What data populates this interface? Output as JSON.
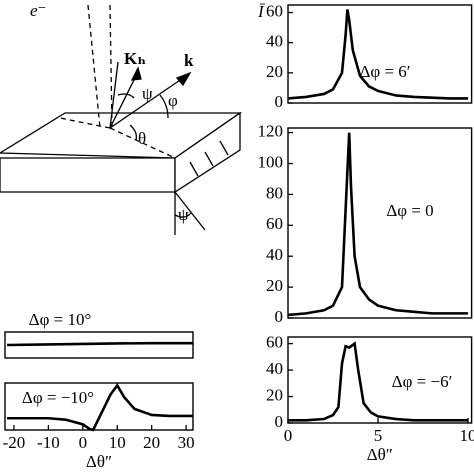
{
  "diagram": {
    "labels": [
      "e⁻",
      "Kₕ",
      "k",
      "ψ",
      "φ",
      "θ",
      "ψ"
    ]
  },
  "chart_data": [
    {
      "type": "line",
      "annotation": "Δφ = 6′",
      "ylabel": "Ī",
      "color": "#000000",
      "x": [
        0,
        1,
        2,
        2.5,
        3,
        3.2,
        3.3,
        3.4,
        3.6,
        4,
        4.5,
        5,
        6,
        7,
        8,
        9,
        10
      ],
      "values": [
        3,
        4,
        6,
        9,
        20,
        45,
        62,
        55,
        35,
        18,
        11,
        8,
        5,
        4,
        3.5,
        3,
        3
      ],
      "xlim": [
        0,
        10.2
      ],
      "ylim": [
        0,
        65
      ],
      "yticks": [
        0,
        20,
        40,
        60
      ]
    },
    {
      "type": "line",
      "annotation": "Δφ = 0",
      "color": "#000000",
      "x": [
        0,
        1,
        2,
        2.5,
        3,
        3.2,
        3.4,
        3.5,
        3.7,
        4,
        4.5,
        5,
        6,
        7,
        8,
        9,
        10
      ],
      "values": [
        2,
        3,
        5,
        8,
        20,
        70,
        120,
        85,
        40,
        20,
        12,
        8,
        5,
        4,
        3,
        3,
        3
      ],
      "xlim": [
        0,
        10.2
      ],
      "ylim": [
        0,
        123
      ],
      "yticks": [
        0,
        20,
        40,
        60,
        80,
        100,
        120
      ]
    },
    {
      "type": "line",
      "annotation": "Δφ = −6′",
      "xlabel": "Δθ″",
      "color": "#000000",
      "x": [
        0,
        1,
        2,
        2.5,
        2.8,
        3,
        3.2,
        3.4,
        3.6,
        3.7,
        3.9,
        4.2,
        4.6,
        5,
        6,
        7,
        8,
        10
      ],
      "values": [
        2,
        2,
        3,
        6,
        12,
        45,
        58,
        57,
        59,
        60,
        40,
        15,
        8,
        5,
        3,
        2,
        2,
        2
      ],
      "xlim": [
        0,
        10.2
      ],
      "ylim": [
        0,
        65
      ],
      "yticks": [
        0,
        20,
        40,
        60
      ],
      "xticks": [
        0,
        5,
        10
      ]
    },
    {
      "type": "line",
      "annotation": "Δφ = 10°",
      "color": "#000000",
      "x": [
        -22,
        -10,
        0,
        10,
        20,
        32
      ],
      "values": [
        0.5,
        0.52,
        0.54,
        0.56,
        0.57,
        0.57
      ],
      "xlim": [
        -22.6,
        32
      ],
      "ylim": [
        0,
        1
      ]
    },
    {
      "type": "line",
      "annotation": "Δφ = −10°",
      "xlabel": "Δθ″",
      "color": "#000000",
      "x": [
        -22,
        -15,
        -10,
        -5,
        0,
        2,
        3,
        5,
        8,
        10,
        12,
        15,
        20,
        25,
        32
      ],
      "values": [
        0.25,
        0.25,
        0.25,
        0.22,
        0.12,
        0.02,
        0,
        0.3,
        0.75,
        0.95,
        0.7,
        0.45,
        0.32,
        0.3,
        0.3
      ],
      "xlim": [
        -22.6,
        32
      ],
      "ylim": [
        0,
        1
      ],
      "xticks": [
        -20,
        -10,
        0,
        10,
        20,
        30
      ]
    }
  ]
}
